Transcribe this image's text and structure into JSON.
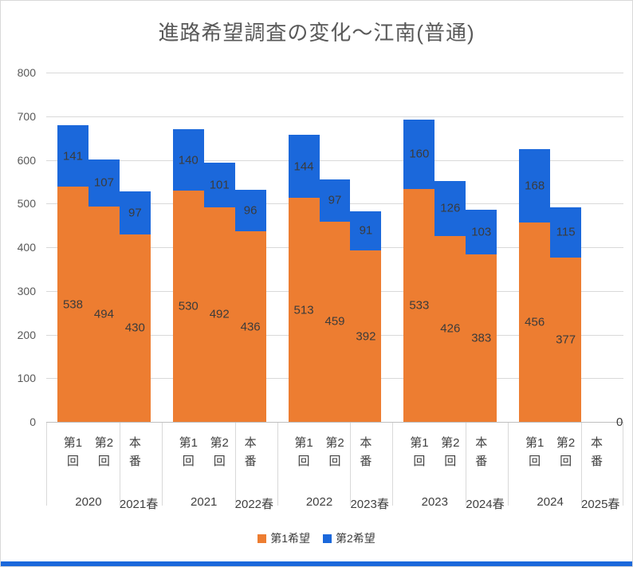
{
  "window": {
    "bottom_bar_color": "#1b68db",
    "background": "#ffffff"
  },
  "chart_data": {
    "type": "bar",
    "stacked": true,
    "title": "進路希望調査の変化〜江南(普通)",
    "ylim": [
      0,
      800
    ],
    "y_ticks": [
      0,
      100,
      200,
      300,
      400,
      500,
      600,
      700,
      800
    ],
    "grid": true,
    "legend_position": "bottom",
    "series": [
      {
        "name": "第1希望",
        "color": "#ED7D31"
      },
      {
        "name": "第2希望",
        "color": "#1b68db"
      }
    ],
    "groups": [
      {
        "survey_year": "2020",
        "result_year": "2021春",
        "bars": [
          {
            "label": "第1回",
            "values": [
              538,
              141
            ]
          },
          {
            "label": "第2回",
            "values": [
              494,
              107
            ]
          },
          {
            "label": "本番",
            "values": [
              430,
              97
            ]
          }
        ]
      },
      {
        "survey_year": "2021",
        "result_year": "2022春",
        "bars": [
          {
            "label": "第1回",
            "values": [
              530,
              140
            ]
          },
          {
            "label": "第2回",
            "values": [
              492,
              101
            ]
          },
          {
            "label": "本番",
            "values": [
              436,
              96
            ]
          }
        ]
      },
      {
        "survey_year": "2022",
        "result_year": "2023春",
        "bars": [
          {
            "label": "第1回",
            "values": [
              513,
              144
            ]
          },
          {
            "label": "第2回",
            "values": [
              459,
              97
            ]
          },
          {
            "label": "本番",
            "values": [
              392,
              91
            ]
          }
        ]
      },
      {
        "survey_year": "2023",
        "result_year": "2024春",
        "bars": [
          {
            "label": "第1回",
            "values": [
              533,
              160
            ]
          },
          {
            "label": "第2回",
            "values": [
              426,
              126
            ]
          },
          {
            "label": "本番",
            "values": [
              383,
              103
            ]
          }
        ]
      },
      {
        "survey_year": "2024",
        "result_year": "2025春",
        "bars": [
          {
            "label": "第1回",
            "values": [
              456,
              168
            ]
          },
          {
            "label": "第2回",
            "values": [
              377,
              115
            ]
          },
          {
            "label": "本番",
            "values": [
              0,
              0
            ],
            "data_label": "0"
          }
        ]
      }
    ]
  }
}
